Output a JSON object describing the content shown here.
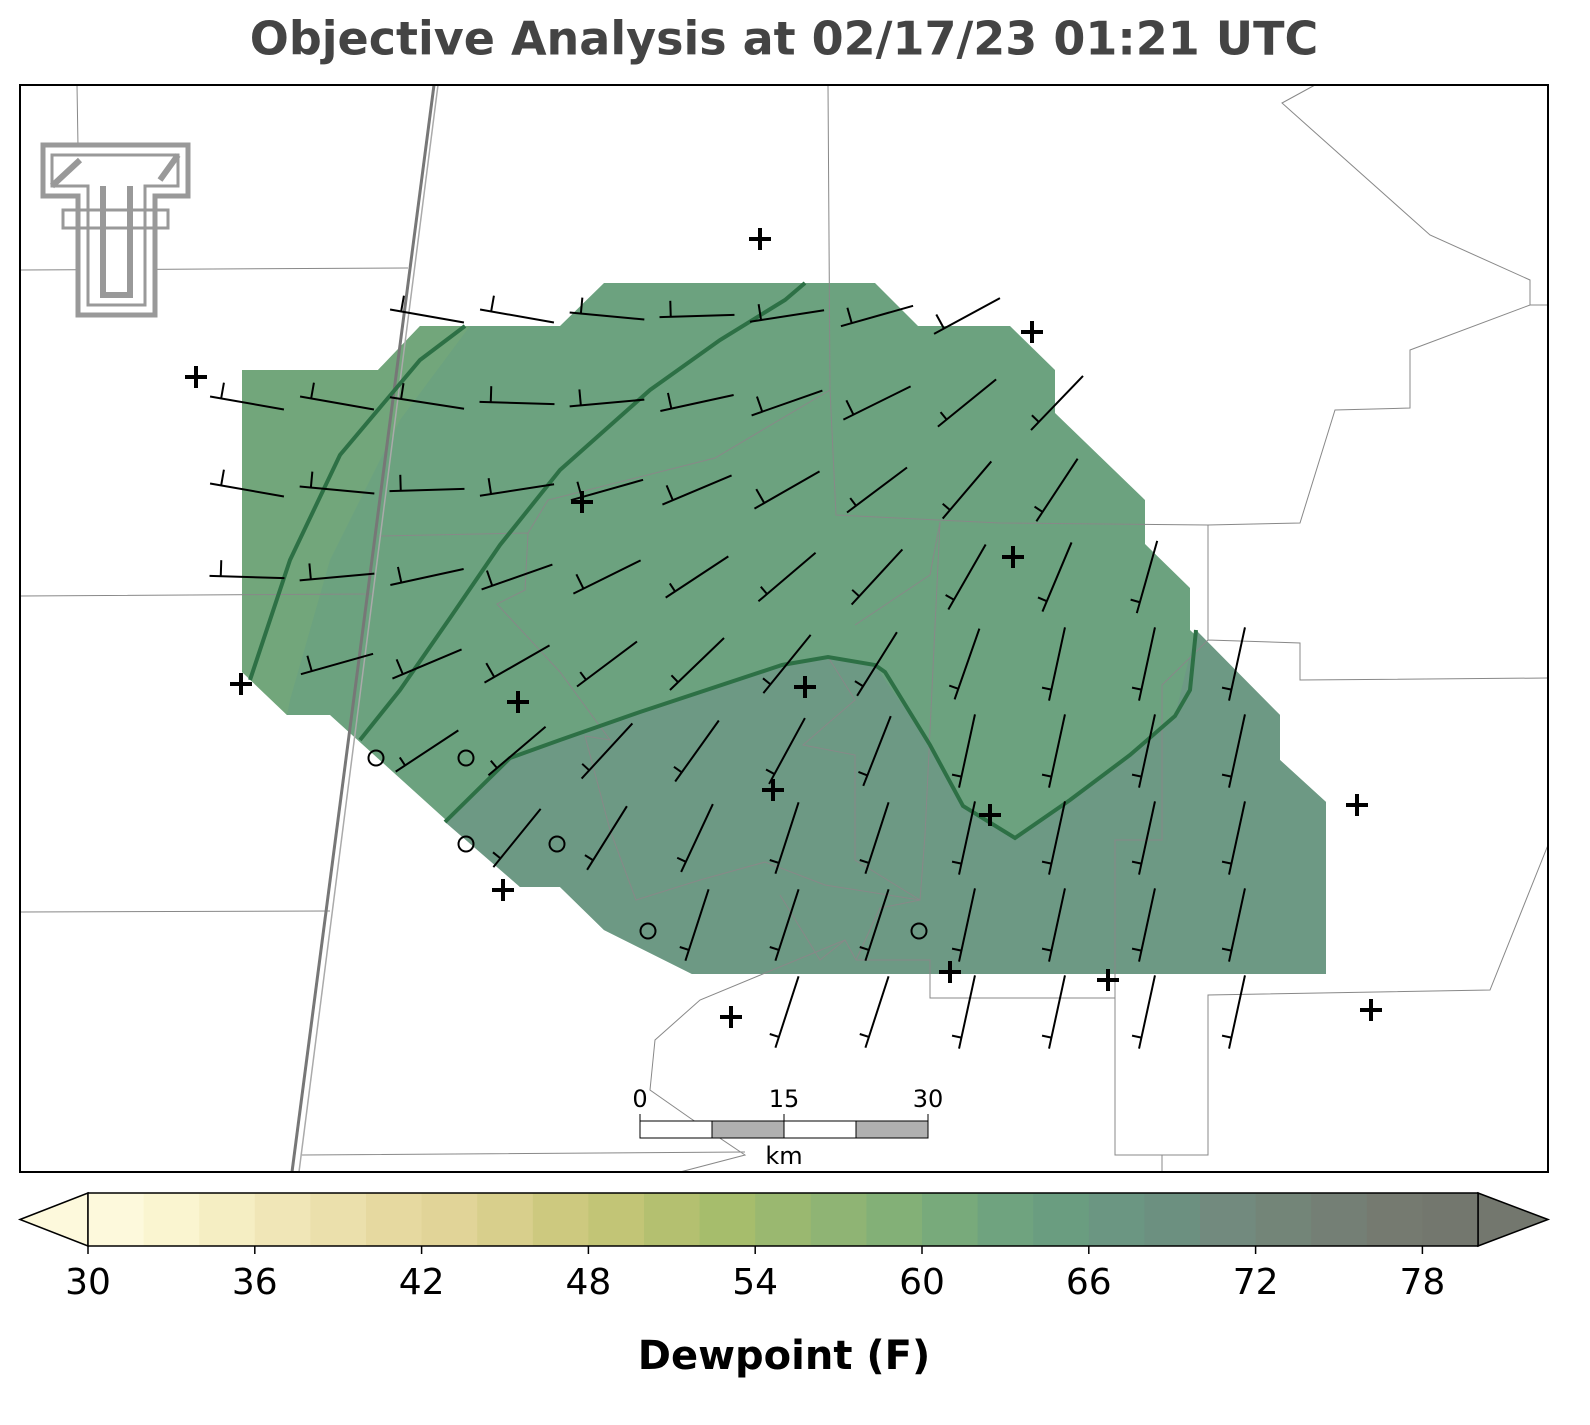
{
  "title": "Objective Analysis at 02/17/23 01:21 UTC",
  "colorbar": {
    "label": "Dewpoint (F)",
    "lim": [
      30,
      80
    ],
    "ticks": [
      30,
      36,
      42,
      48,
      54,
      60,
      66,
      72,
      78
    ],
    "colors": [
      "#fdf9dc",
      "#faf5d0",
      "#f5eec3",
      "#f0e6b7",
      "#ebe0ac",
      "#e6d9a0",
      "#e1d498",
      "#d8cf8c",
      "#cdc97f",
      "#c2c576",
      "#b4c070",
      "#a6bd6c",
      "#9ab870",
      "#8fb474",
      "#83b077",
      "#78aa7b",
      "#6fa37f",
      "#6a9d80",
      "#6b9682",
      "#6c9080",
      "#728a7e",
      "#738578",
      "#747f75",
      "#757a70",
      "#73776e"
    ]
  },
  "scale_bar": {
    "ticks": [
      0,
      15,
      30
    ],
    "unit": "km"
  }
}
